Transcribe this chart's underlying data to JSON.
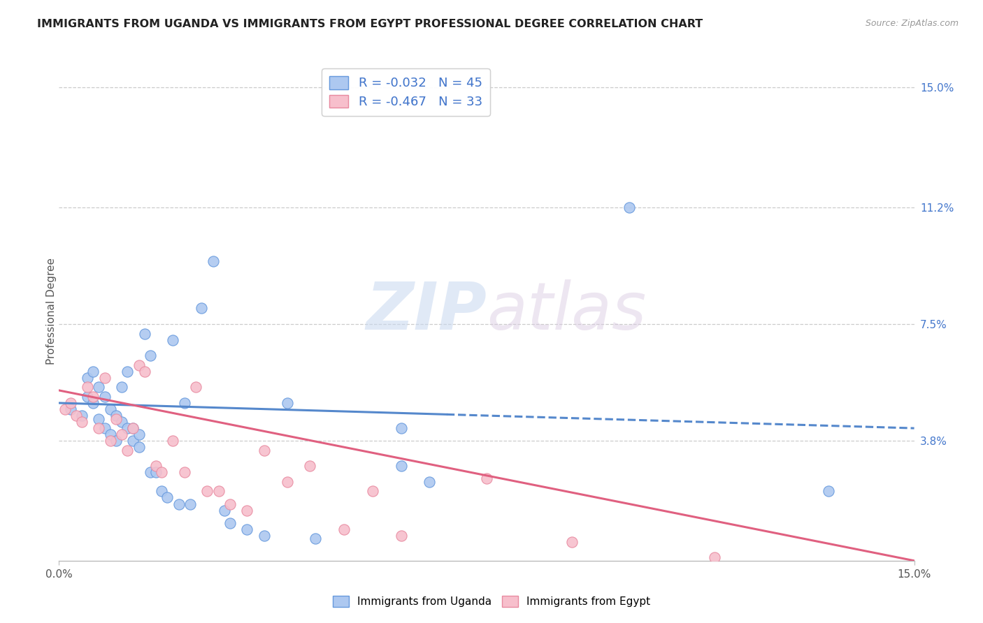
{
  "title": "IMMIGRANTS FROM UGANDA VS IMMIGRANTS FROM EGYPT PROFESSIONAL DEGREE CORRELATION CHART",
  "source": "Source: ZipAtlas.com",
  "ylabel": "Professional Degree",
  "ytick_labels": [
    "15.0%",
    "11.2%",
    "7.5%",
    "3.8%"
  ],
  "ytick_values": [
    0.15,
    0.112,
    0.075,
    0.038
  ],
  "xlim": [
    0.0,
    0.15
  ],
  "ylim": [
    0.0,
    0.158
  ],
  "r_uganda": -0.032,
  "n_uganda": 45,
  "r_egypt": -0.467,
  "n_egypt": 33,
  "color_uganda_fill": "#adc8f0",
  "color_egypt_fill": "#f7bfcc",
  "color_uganda_edge": "#6699dd",
  "color_egypt_edge": "#e88aa0",
  "color_uganda_line": "#5588cc",
  "color_egypt_line": "#e06080",
  "legend_r_color": "#4477cc",
  "background_color": "#ffffff",
  "grid_color": "#cccccc",
  "uganda_scatter_x": [
    0.002,
    0.004,
    0.005,
    0.005,
    0.006,
    0.006,
    0.007,
    0.007,
    0.008,
    0.008,
    0.009,
    0.009,
    0.01,
    0.01,
    0.011,
    0.011,
    0.012,
    0.012,
    0.013,
    0.013,
    0.014,
    0.014,
    0.015,
    0.016,
    0.016,
    0.017,
    0.018,
    0.019,
    0.02,
    0.021,
    0.022,
    0.023,
    0.025,
    0.027,
    0.029,
    0.03,
    0.033,
    0.036,
    0.04,
    0.045,
    0.06,
    0.06,
    0.065,
    0.1,
    0.135
  ],
  "uganda_scatter_y": [
    0.048,
    0.046,
    0.052,
    0.058,
    0.05,
    0.06,
    0.045,
    0.055,
    0.042,
    0.052,
    0.04,
    0.048,
    0.038,
    0.046,
    0.044,
    0.055,
    0.042,
    0.06,
    0.038,
    0.042,
    0.036,
    0.04,
    0.072,
    0.065,
    0.028,
    0.028,
    0.022,
    0.02,
    0.07,
    0.018,
    0.05,
    0.018,
    0.08,
    0.095,
    0.016,
    0.012,
    0.01,
    0.008,
    0.05,
    0.007,
    0.03,
    0.042,
    0.025,
    0.112,
    0.022
  ],
  "egypt_scatter_x": [
    0.001,
    0.002,
    0.003,
    0.004,
    0.005,
    0.006,
    0.007,
    0.008,
    0.009,
    0.01,
    0.011,
    0.012,
    0.013,
    0.014,
    0.015,
    0.017,
    0.018,
    0.02,
    0.022,
    0.024,
    0.026,
    0.028,
    0.03,
    0.033,
    0.036,
    0.04,
    0.044,
    0.05,
    0.055,
    0.06,
    0.075,
    0.09,
    0.115
  ],
  "egypt_scatter_y": [
    0.048,
    0.05,
    0.046,
    0.044,
    0.055,
    0.052,
    0.042,
    0.058,
    0.038,
    0.045,
    0.04,
    0.035,
    0.042,
    0.062,
    0.06,
    0.03,
    0.028,
    0.038,
    0.028,
    0.055,
    0.022,
    0.022,
    0.018,
    0.016,
    0.035,
    0.025,
    0.03,
    0.01,
    0.022,
    0.008,
    0.026,
    0.006,
    0.001
  ],
  "ug_line_x0": 0.0,
  "ug_line_y0": 0.05,
  "ug_line_x_solid_end": 0.068,
  "ug_line_x1": 0.15,
  "ug_line_y1": 0.042,
  "eg_line_x0": 0.0,
  "eg_line_y0": 0.054,
  "eg_line_x1": 0.15,
  "eg_line_y1": 0.0
}
